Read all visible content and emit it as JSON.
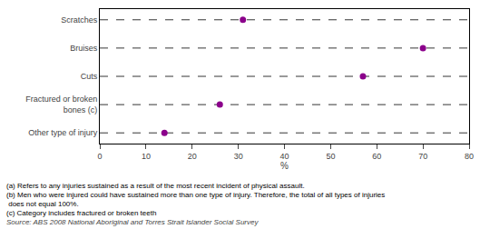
{
  "chart_data": {
    "type": "dot",
    "categories": [
      "Scratches",
      "Bruises",
      "Cuts",
      "Fractured or broken\nbones (c)",
      "Other type of injury"
    ],
    "values": [
      31,
      70,
      57,
      26,
      14
    ],
    "color": "#8B008B",
    "marker": "circle",
    "line_style": "dashed",
    "xlabel": "%",
    "xlim": [
      0,
      80
    ],
    "xticks": [
      0,
      10,
      20,
      30,
      40,
      50,
      60,
      70,
      80
    ],
    "grid": false,
    "annotations": [
      "(a) Refers to any injuries sustained as a result of the most recent incident of physical assault.",
      "(b) Men who were injured could have sustained more than one type of injury. Therefore, the total of all types of injuries",
      " does not equal 100%.",
      "(c) Category includes fractured or broken teeth"
    ],
    "source": "Source: ABS 2008 National Aboriginal and Torres Strait Islander Social Survey"
  }
}
